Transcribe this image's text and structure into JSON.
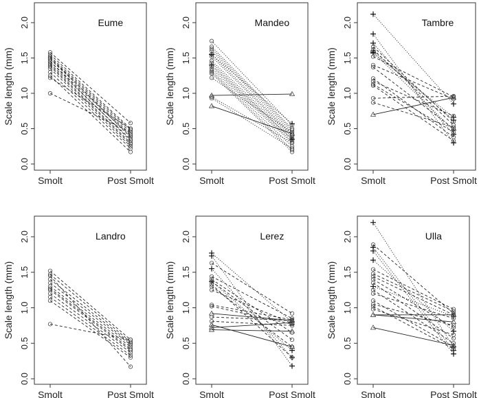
{
  "chart_data": [
    {
      "type": "line",
      "title": "Eume",
      "xlabel": "",
      "ylabel": "Scale length (mm)",
      "categories": [
        "Smolt",
        "Post Smolt"
      ],
      "yticks": [
        "0.0",
        "0.5",
        "1.0",
        "1.5",
        "2.0"
      ],
      "ylim": [
        0,
        2.2
      ],
      "fish": [
        [
          1.58,
          0.58,
          "circle",
          "dashed"
        ],
        [
          1.55,
          0.5,
          "circle",
          "dashed"
        ],
        [
          1.52,
          0.48,
          "circle",
          "dashed"
        ],
        [
          1.5,
          0.45,
          "circle",
          "dashed"
        ],
        [
          1.48,
          0.42,
          "circle",
          "dashed"
        ],
        [
          1.45,
          0.4,
          "circle",
          "dashed"
        ],
        [
          1.42,
          0.35,
          "circle",
          "dashed"
        ],
        [
          1.4,
          0.3,
          "circle",
          "dashed"
        ],
        [
          1.35,
          0.25,
          "circle",
          "dashed"
        ],
        [
          1.3,
          0.22,
          "circle",
          "dashed"
        ],
        [
          1.25,
          0.17,
          "circle",
          "dashed"
        ],
        [
          1.22,
          0.5,
          "circle",
          "dashed"
        ],
        [
          1.0,
          0.45,
          "circle",
          "dashed"
        ],
        [
          1.5,
          0.38,
          "circle",
          "dashed"
        ],
        [
          1.45,
          0.33,
          "circle",
          "dashed"
        ],
        [
          1.38,
          0.28,
          "circle",
          "dashed"
        ]
      ]
    },
    {
      "type": "line",
      "title": "Mandeo",
      "xlabel": "",
      "ylabel": "Scale length (mm)",
      "categories": [
        "Smolt",
        "Post Smolt"
      ],
      "yticks": [
        "0.0",
        "0.5",
        "1.0",
        "1.5",
        "2.0"
      ],
      "ylim": [
        0,
        2.2
      ],
      "fish": [
        [
          1.74,
          0.55,
          "circle",
          "dotted"
        ],
        [
          1.66,
          0.5,
          "circle",
          "dotted"
        ],
        [
          1.63,
          0.48,
          "circle",
          "dotted"
        ],
        [
          1.6,
          0.45,
          "circle",
          "dotted"
        ],
        [
          1.55,
          0.42,
          "circle",
          "dotted"
        ],
        [
          1.52,
          0.4,
          "circle",
          "dotted"
        ],
        [
          1.46,
          0.38,
          "circle",
          "dotted"
        ],
        [
          1.43,
          0.35,
          "circle",
          "dotted"
        ],
        [
          1.38,
          0.32,
          "circle",
          "dotted"
        ],
        [
          1.35,
          0.3,
          "circle",
          "dotted"
        ],
        [
          1.32,
          0.25,
          "circle",
          "dotted"
        ],
        [
          1.3,
          0.2,
          "circle",
          "dotted"
        ],
        [
          1.28,
          0.17,
          "circle",
          "dotted"
        ],
        [
          1.22,
          0.45,
          "circle",
          "dotted"
        ],
        [
          0.95,
          0.3,
          "circle",
          "dotted"
        ],
        [
          0.93,
          0.22,
          "circle",
          "dotted"
        ],
        [
          1.55,
          0.57,
          "plus",
          "dotted"
        ],
        [
          1.4,
          0.35,
          "plus",
          "dotted"
        ],
        [
          0.97,
          0.99,
          "triangle",
          "solid"
        ],
        [
          0.82,
          0.43,
          "triangle",
          "solid"
        ]
      ]
    },
    {
      "type": "line",
      "title": "Tambre",
      "xlabel": "",
      "ylabel": "Scale length (mm)",
      "categories": [
        "Smolt",
        "Post Smolt"
      ],
      "yticks": [
        "0.0",
        "0.5",
        "1.0",
        "1.5",
        "2.0"
      ],
      "ylim": [
        0,
        2.2
      ],
      "fish": [
        [
          2.12,
          0.85,
          "plus",
          "dotted"
        ],
        [
          1.84,
          0.3,
          "plus",
          "dotted"
        ],
        [
          1.71,
          0.42,
          "plus",
          "dotted"
        ],
        [
          1.58,
          0.48,
          "plus",
          "dotted"
        ],
        [
          1.6,
          0.62,
          "plus",
          "dotted"
        ],
        [
          1.57,
          0.66,
          "plus",
          "dotted"
        ],
        [
          1.66,
          0.6,
          "circle",
          "dashed"
        ],
        [
          1.62,
          0.55,
          "circle",
          "dashed"
        ],
        [
          1.52,
          0.95,
          "circle",
          "dashed"
        ],
        [
          1.4,
          0.92,
          "circle",
          "dashed"
        ],
        [
          1.37,
          0.5,
          "circle",
          "dashed"
        ],
        [
          1.21,
          0.38,
          "circle",
          "dashed"
        ],
        [
          1.17,
          0.68,
          "circle",
          "dashed"
        ],
        [
          1.13,
          0.45,
          "circle",
          "dashed"
        ],
        [
          1.11,
          0.33,
          "circle",
          "dashed"
        ],
        [
          0.93,
          0.96,
          "circle",
          "dashed"
        ],
        [
          0.87,
          0.52,
          "circle",
          "dashed"
        ],
        [
          0.7,
          0.94,
          "triangle",
          "solid"
        ]
      ]
    },
    {
      "type": "line",
      "title": "Landro",
      "xlabel": "",
      "ylabel": "Scale length (mm)",
      "categories": [
        "Smolt",
        "Post Smolt"
      ],
      "yticks": [
        "0.0",
        "0.5",
        "1.0",
        "1.5",
        "2.0"
      ],
      "ylim": [
        0,
        2.2
      ],
      "fish": [
        [
          1.52,
          0.55,
          "circle",
          "dashed"
        ],
        [
          1.47,
          0.52,
          "circle",
          "dashed"
        ],
        [
          1.4,
          0.5,
          "circle",
          "dashed"
        ],
        [
          1.35,
          0.48,
          "circle",
          "dashed"
        ],
        [
          1.3,
          0.45,
          "circle",
          "dashed"
        ],
        [
          1.27,
          0.42,
          "circle",
          "dashed"
        ],
        [
          1.25,
          0.4,
          "circle",
          "dashed"
        ],
        [
          1.2,
          0.37,
          "circle",
          "dashed"
        ],
        [
          1.15,
          0.33,
          "circle",
          "dashed"
        ],
        [
          1.1,
          0.3,
          "circle",
          "dashed"
        ],
        [
          0.77,
          0.55,
          "circle",
          "dashed"
        ],
        [
          1.45,
          0.17,
          "circle",
          "dashed"
        ]
      ]
    },
    {
      "type": "line",
      "title": "Lerez",
      "xlabel": "",
      "ylabel": "Scale length (mm)",
      "categories": [
        "Smolt",
        "Post Smolt"
      ],
      "yticks": [
        "0.0",
        "0.5",
        "1.0",
        "1.5",
        "2.0"
      ],
      "ylim": [
        0,
        2.2
      ],
      "fish": [
        [
          1.77,
          0.8,
          "plus",
          "dotted"
        ],
        [
          1.73,
          0.18,
          "plus",
          "dotted"
        ],
        [
          1.55,
          0.3,
          "plus",
          "dotted"
        ],
        [
          1.37,
          0.4,
          "plus",
          "dotted"
        ],
        [
          1.63,
          0.92,
          "circle",
          "dashed"
        ],
        [
          1.44,
          0.85,
          "circle",
          "dashed"
        ],
        [
          1.4,
          0.65,
          "circle",
          "dashed"
        ],
        [
          1.37,
          0.55,
          "circle",
          "dashed"
        ],
        [
          1.33,
          0.3,
          "circle",
          "dashed"
        ],
        [
          1.3,
          0.45,
          "circle",
          "dashed"
        ],
        [
          1.25,
          0.78,
          "circle",
          "dashed"
        ],
        [
          1.04,
          0.83,
          "circle",
          "dashed"
        ],
        [
          1.02,
          0.77,
          "circle",
          "dashed"
        ],
        [
          0.87,
          0.82,
          "circle",
          "dashed"
        ],
        [
          0.81,
          0.75,
          "circle",
          "dashed"
        ],
        [
          0.92,
          0.82,
          "triangle",
          "solid"
        ],
        [
          0.76,
          0.45,
          "triangle",
          "solid"
        ],
        [
          0.72,
          0.79,
          "triangle",
          "solid"
        ],
        [
          0.69,
          0.67,
          "triangle",
          "solid"
        ]
      ]
    },
    {
      "type": "line",
      "title": "Ulla",
      "xlabel": "",
      "ylabel": "Scale length (mm)",
      "categories": [
        "Smolt",
        "Post Smolt"
      ],
      "yticks": [
        "0.0",
        "0.5",
        "1.0",
        "1.5",
        "2.0"
      ],
      "ylim": [
        0,
        2.2
      ],
      "fish": [
        [
          2.2,
          0.45,
          "plus",
          "dotted"
        ],
        [
          1.85,
          0.4,
          "plus",
          "dotted"
        ],
        [
          1.8,
          0.35,
          "plus",
          "dotted"
        ],
        [
          1.67,
          0.67,
          "plus",
          "dotted"
        ],
        [
          1.3,
          0.88,
          "plus",
          "dotted"
        ],
        [
          1.89,
          0.92,
          "circle",
          "dashed"
        ],
        [
          1.54,
          0.98,
          "circle",
          "dashed"
        ],
        [
          1.48,
          0.95,
          "circle",
          "dashed"
        ],
        [
          1.44,
          0.9,
          "circle",
          "dashed"
        ],
        [
          1.4,
          0.72,
          "circle",
          "dashed"
        ],
        [
          1.35,
          0.57,
          "circle",
          "dashed"
        ],
        [
          1.25,
          0.5,
          "circle",
          "dashed"
        ],
        [
          1.2,
          0.85,
          "circle",
          "dashed"
        ],
        [
          1.1,
          0.45,
          "circle",
          "dashed"
        ],
        [
          1.02,
          0.42,
          "circle",
          "dashed"
        ],
        [
          0.98,
          0.62,
          "circle",
          "dashed"
        ],
        [
          1.05,
          0.75,
          "circle",
          "dashed"
        ],
        [
          0.9,
          0.9,
          "triangle",
          "solid"
        ],
        [
          0.9,
          0.8,
          "triangle",
          "solid"
        ],
        [
          0.72,
          0.47,
          "triangle",
          "solid"
        ]
      ]
    }
  ]
}
